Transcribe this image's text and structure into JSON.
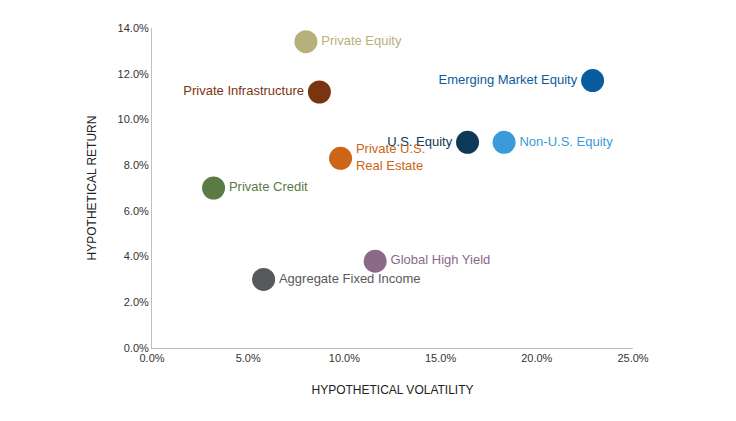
{
  "chart_data": {
    "type": "scatter",
    "x_label": "HYPOTHETICAL VOLATILITY",
    "y_label": "HYPOTHETICAL RETURN",
    "labels": [
      "Private Equity",
      "Private Infrastructure",
      "Emerging Market Equity",
      "U.S. Equity",
      "Non-U.S. Equity",
      "Private U.S.\nReal Estate",
      "Private Credit",
      "Global High Yield",
      "Aggregate Fixed Income"
    ],
    "x": [
      8.0,
      8.7,
      22.9,
      16.4,
      18.3,
      9.8,
      3.2,
      11.6,
      5.8
    ],
    "values": [
      13.4,
      11.2,
      11.7,
      9.0,
      9.0,
      8.3,
      7.0,
      3.8,
      3.0
    ],
    "colors": [
      "#b8b07c",
      "#7a3510",
      "#0b5c9e",
      "#0d3a58",
      "#3b9ad9",
      "#cc6518",
      "#5b7a46",
      "#8a6a88",
      "#58595b"
    ],
    "xlim": [
      0,
      25
    ],
    "ylim": [
      0,
      14
    ],
    "xticks": [
      {
        "value": 0,
        "label": "0.0%"
      },
      {
        "value": 5,
        "label": "5.0%"
      },
      {
        "value": 10,
        "label": "10.0%"
      },
      {
        "value": 15,
        "label": "15.0%"
      },
      {
        "value": 20,
        "label": "20.0%"
      },
      {
        "value": 25,
        "label": "25.0%"
      }
    ],
    "yticks": [
      {
        "value": 0,
        "label": "0.0%"
      },
      {
        "value": 2,
        "label": "2.0%"
      },
      {
        "value": 4,
        "label": "4.0%"
      },
      {
        "value": 6,
        "label": "6.0%"
      },
      {
        "value": 8,
        "label": "8.0%"
      },
      {
        "value": 10,
        "label": "10.0%"
      },
      {
        "value": 12,
        "label": "12.0%"
      },
      {
        "value": 14,
        "label": "14.0%"
      }
    ],
    "grid": false
  }
}
